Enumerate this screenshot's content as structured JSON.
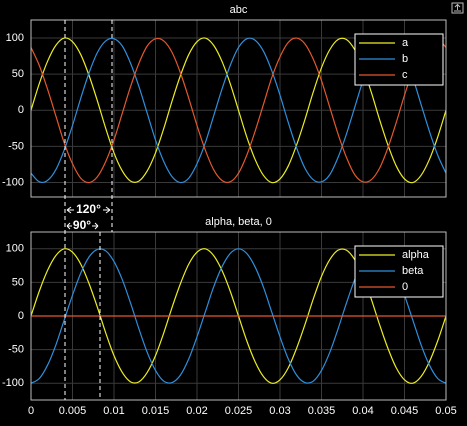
{
  "chart_data": [
    {
      "type": "line",
      "title": "abc",
      "legend": "upper right",
      "x": [
        0,
        0.001,
        0.002,
        0.003,
        0.004,
        0.005,
        0.006,
        0.007,
        0.008,
        0.009,
        0.01,
        0.011,
        0.012,
        0.013,
        0.014,
        0.015,
        0.016,
        0.017,
        0.018,
        0.019,
        0.02,
        0.021,
        0.022,
        0.023,
        0.024,
        0.025,
        0.026,
        0.027,
        0.028,
        0.029,
        0.03,
        0.031,
        0.032,
        0.033,
        0.034,
        0.035,
        0.036,
        0.037,
        0.038,
        0.039,
        0.04,
        0.041,
        0.042,
        0.043,
        0.044,
        0.045,
        0.046,
        0.047,
        0.048,
        0.049,
        0.05
      ],
      "xlim": [
        0,
        0.05
      ],
      "xticks": [
        0,
        0.005,
        0.01,
        0.015,
        0.02,
        0.025,
        0.03,
        0.035,
        0.04,
        0.045,
        0.05
      ],
      "ylim": [
        -120,
        125
      ],
      "yticks": [
        -100,
        -50,
        0,
        50,
        100
      ],
      "grid": true,
      "annotations": [
        "120°",
        "90°"
      ],
      "series": [
        {
          "name": "a",
          "color": "#ecec24",
          "values": [
            0,
            37,
            68,
            90,
            100,
            95,
            77,
            48,
            13,
            -25,
            -59,
            -84,
            -98,
            -98,
            -84,
            -59,
            -25,
            13,
            48,
            77,
            95,
            100,
            90,
            68,
            37,
            0,
            -37,
            -68,
            -90,
            -100,
            -95,
            -77,
            -48,
            -13,
            25,
            59,
            84,
            98,
            98,
            84,
            59,
            25,
            -13,
            -48,
            -77,
            -95,
            -100,
            -90,
            -68,
            -37,
            0
          ]
        },
        {
          "name": "b",
          "color": "#2f8fdc",
          "values": [
            -87,
            -99,
            -97,
            -82,
            -55,
            -21,
            17,
            52,
            80,
            96,
            99,
            89,
            65,
            33,
            -4,
            -41,
            -71,
            -92,
            -100,
            -94,
            -74,
            -45,
            -8,
            29,
            62,
            87,
            99,
            97,
            82,
            55,
            21,
            -17,
            -52,
            -80,
            -96,
            -99,
            -89,
            -65,
            -33,
            4,
            41,
            71,
            92,
            100,
            94,
            74,
            45,
            8,
            -29,
            -62,
            -87
          ]
        },
        {
          "name": "c",
          "color": "#e3582c",
          "values": [
            87,
            62,
            29,
            -8,
            -45,
            -74,
            -94,
            -100,
            -92,
            -71,
            -41,
            -4,
            33,
            65,
            89,
            99,
            96,
            80,
            52,
            17,
            -21,
            -55,
            -82,
            -97,
            -99,
            -87,
            -62,
            -29,
            8,
            45,
            74,
            94,
            100,
            92,
            71,
            41,
            4,
            -33,
            -65,
            -89,
            -99,
            -96,
            -80,
            -52,
            -17,
            21,
            55,
            82,
            97,
            99,
            87
          ]
        }
      ]
    },
    {
      "type": "line",
      "title": "alpha, beta, 0",
      "legend": "upper right",
      "x": [
        0,
        0.001,
        0.002,
        0.003,
        0.004,
        0.005,
        0.006,
        0.007,
        0.008,
        0.009,
        0.01,
        0.011,
        0.012,
        0.013,
        0.014,
        0.015,
        0.016,
        0.017,
        0.018,
        0.019,
        0.02,
        0.021,
        0.022,
        0.023,
        0.024,
        0.025,
        0.026,
        0.027,
        0.028,
        0.029,
        0.03,
        0.031,
        0.032,
        0.033,
        0.034,
        0.035,
        0.036,
        0.037,
        0.038,
        0.039,
        0.04,
        0.041,
        0.042,
        0.043,
        0.044,
        0.045,
        0.046,
        0.047,
        0.048,
        0.049,
        0.05
      ],
      "xlim": [
        0,
        0.05
      ],
      "xticks": [
        0,
        0.005,
        0.01,
        0.015,
        0.02,
        0.025,
        0.03,
        0.035,
        0.04,
        0.045,
        0.05
      ],
      "ylim": [
        -125,
        125
      ],
      "yticks": [
        -100,
        -50,
        0,
        50,
        100
      ],
      "grid": true,
      "series": [
        {
          "name": "alpha",
          "color": "#ecec24",
          "values": [
            0,
            37,
            68,
            90,
            100,
            95,
            77,
            48,
            13,
            -25,
            -59,
            -84,
            -98,
            -98,
            -84,
            -59,
            -25,
            13,
            48,
            77,
            95,
            100,
            90,
            68,
            37,
            0,
            -37,
            -68,
            -90,
            -100,
            -95,
            -77,
            -48,
            -13,
            25,
            59,
            84,
            98,
            98,
            84,
            59,
            25,
            -13,
            -48,
            -77,
            -95,
            -100,
            -90,
            -68,
            -37,
            0
          ]
        },
        {
          "name": "beta",
          "color": "#2f8fdc",
          "values": [
            -100,
            -93,
            -73,
            -43,
            -6,
            31,
            64,
            88,
            99,
            97,
            81,
            54,
            19,
            -19,
            -54,
            -81,
            -97,
            -99,
            -88,
            -64,
            -31,
            6,
            43,
            73,
            93,
            100,
            93,
            73,
            43,
            6,
            -31,
            -64,
            -88,
            -99,
            -97,
            -81,
            -54,
            -19,
            19,
            54,
            81,
            97,
            99,
            88,
            64,
            31,
            -6,
            -43,
            -73,
            -93,
            -100
          ]
        },
        {
          "name": "0",
          "color": "#e3582c",
          "values": [
            0,
            0,
            0,
            0,
            0,
            0,
            0,
            0,
            0,
            0,
            0,
            0,
            0,
            0,
            0,
            0,
            0,
            0,
            0,
            0,
            0,
            0,
            0,
            0,
            0,
            0,
            0,
            0,
            0,
            0,
            0,
            0,
            0,
            0,
            0,
            0,
            0,
            0,
            0,
            0,
            0,
            0,
            0,
            0,
            0,
            0,
            0,
            0,
            0,
            0,
            0
          ]
        }
      ]
    }
  ]
}
